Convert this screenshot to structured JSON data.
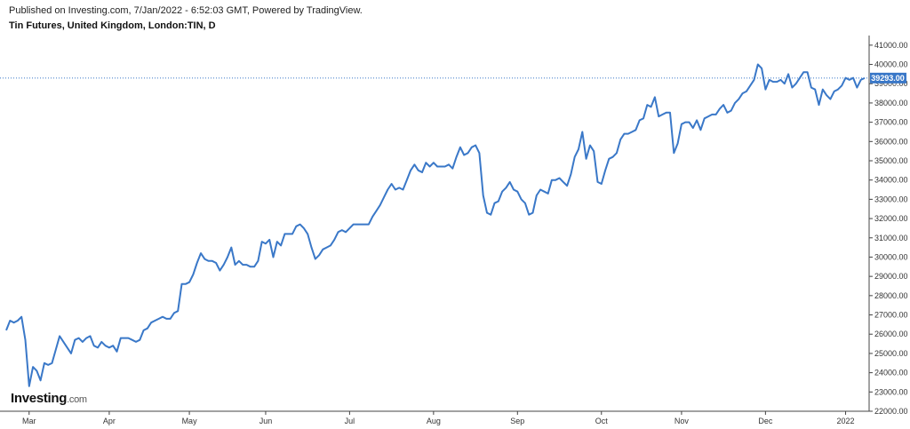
{
  "header": {
    "published": "Published on Investing.com, 7/Jan/2022 - 6:52:03 GMT, Powered by TradingView.",
    "title": "Tin Futures, United Kingdom, London:TIN, D"
  },
  "logo": {
    "name": "Investing",
    "suffix": ".com"
  },
  "colors": {
    "line": "#3a78c8",
    "last_badge": "#3a78c8",
    "axis": "#444444"
  },
  "chart_data": {
    "type": "line",
    "title": "",
    "xlabel": "",
    "ylabel": "",
    "ylim": [
      22000,
      41500
    ],
    "yticks": [
      22000,
      23000,
      24000,
      25000,
      26000,
      27000,
      28000,
      29000,
      30000,
      31000,
      32000,
      33000,
      34000,
      35000,
      36000,
      37000,
      38000,
      39000,
      40000,
      41000
    ],
    "xtick_labels": [
      {
        "label": "Mar",
        "index": 6
      },
      {
        "label": "Apr",
        "index": 27
      },
      {
        "label": "May",
        "index": 48
      },
      {
        "label": "Jun",
        "index": 68
      },
      {
        "label": "Jul",
        "index": 90
      },
      {
        "label": "Aug",
        "index": 112
      },
      {
        "label": "Sep",
        "index": 134
      },
      {
        "label": "Oct",
        "index": 156
      },
      {
        "label": "Nov",
        "index": 177
      },
      {
        "label": "Dec",
        "index": 199
      },
      {
        "label": "2022",
        "index": 220
      }
    ],
    "last_value_label": "39293.00",
    "last_value": 39293,
    "grid": false,
    "series": [
      {
        "values": [
          26200,
          26700,
          26600,
          26700,
          26900,
          25700,
          23300,
          24300,
          24100,
          23600,
          24500,
          24400,
          24500,
          25200,
          25900,
          25600,
          25300,
          25000,
          25700,
          25800,
          25600,
          25800,
          25900,
          25400,
          25300,
          25600,
          25400,
          25300,
          25400,
          25100,
          25800,
          25800,
          25800,
          25700,
          25600,
          25700,
          26200,
          26300,
          26600,
          26700,
          26800,
          26900,
          26800,
          26800,
          27100,
          27200,
          28600,
          28600,
          28700,
          29100,
          29700,
          30200,
          29900,
          29800,
          29800,
          29700,
          29300,
          29600,
          30000,
          30500,
          29600,
          29800,
          29600,
          29600,
          29500,
          29500,
          29800,
          30800,
          30700,
          30900,
          30000,
          30800,
          30600,
          31200,
          31200,
          31200,
          31600,
          31700,
          31500,
          31200,
          30500,
          29900,
          30100,
          30400,
          30500,
          30600,
          30900,
          31300,
          31400,
          31300,
          31500,
          31700,
          31700,
          31700,
          31700,
          31700,
          32100,
          32400,
          32700,
          33100,
          33500,
          33800,
          33500,
          33600,
          33500,
          34000,
          34500,
          34800,
          34500,
          34400,
          34900,
          34700,
          34900,
          34700,
          34700,
          34700,
          34800,
          34600,
          35200,
          35700,
          35300,
          35400,
          35700,
          35800,
          35400,
          33200,
          32300,
          32200,
          32800,
          32900,
          33400,
          33600,
          33900,
          33500,
          33400,
          33000,
          32800,
          32200,
          32300,
          33200,
          33500,
          33400,
          33300,
          34000,
          34000,
          34100,
          33900,
          33700,
          34300,
          35200,
          35600,
          36500,
          35100,
          35800,
          35500,
          33900,
          33800,
          34500,
          35100,
          35200,
          35400,
          36100,
          36400,
          36400,
          36500,
          36600,
          37100,
          37200,
          37900,
          37800,
          38300,
          37300,
          37400,
          37500,
          37500,
          35400,
          35900,
          36900,
          37000,
          37000,
          36700,
          37100,
          36600,
          37200,
          37300,
          37400,
          37400,
          37700,
          37900,
          37500,
          37600,
          38000,
          38200,
          38500,
          38600,
          38900,
          39200,
          40000,
          39800,
          38700,
          39200,
          39100,
          39100,
          39200,
          39000,
          39500,
          38800,
          39000,
          39300,
          39600,
          39600,
          38800,
          38700,
          37900,
          38700,
          38400,
          38200,
          38600,
          38700,
          38900,
          39300,
          39200,
          39300,
          38800,
          39200,
          39293
        ]
      }
    ]
  }
}
